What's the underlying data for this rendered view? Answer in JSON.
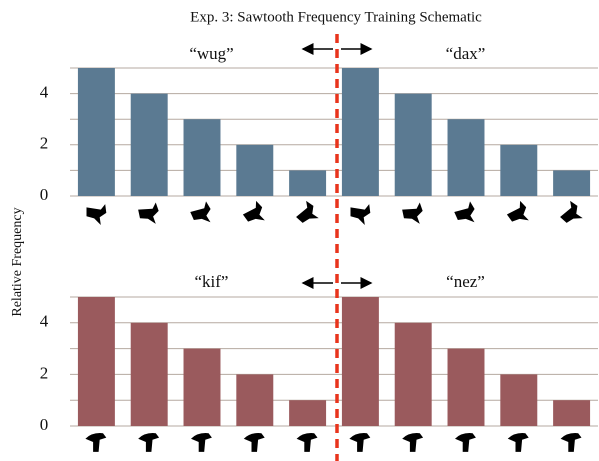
{
  "title": "Exp. 3: Sawtooth Frequency Training Schematic",
  "y_axis_label": "Relative Frequency",
  "chart_data": [
    {
      "type": "bar",
      "categories": [
        null,
        null,
        null,
        null,
        null,
        null,
        null,
        null,
        null,
        null
      ],
      "values": [
        5,
        4,
        3,
        2,
        1,
        5,
        4,
        3,
        2,
        1
      ],
      "color": "#5b7a92",
      "ylim": [
        0,
        5
      ],
      "yticks": [
        0,
        2,
        4
      ],
      "minor_yticks": [
        1,
        3,
        5
      ],
      "grid": true,
      "annotations": [
        "“wug”",
        "“dax”"
      ]
    },
    {
      "type": "bar",
      "categories": [
        null,
        null,
        null,
        null,
        null,
        null,
        null,
        null,
        null,
        null
      ],
      "values": [
        5,
        4,
        3,
        2,
        1,
        5,
        4,
        3,
        2,
        1
      ],
      "color": "#9a5a5d",
      "ylim": [
        0,
        5
      ],
      "yticks": [
        0,
        2,
        4
      ],
      "minor_yticks": [
        1,
        3,
        5
      ],
      "grid": true,
      "annotations": [
        "“kif”",
        "“nez”"
      ]
    }
  ]
}
